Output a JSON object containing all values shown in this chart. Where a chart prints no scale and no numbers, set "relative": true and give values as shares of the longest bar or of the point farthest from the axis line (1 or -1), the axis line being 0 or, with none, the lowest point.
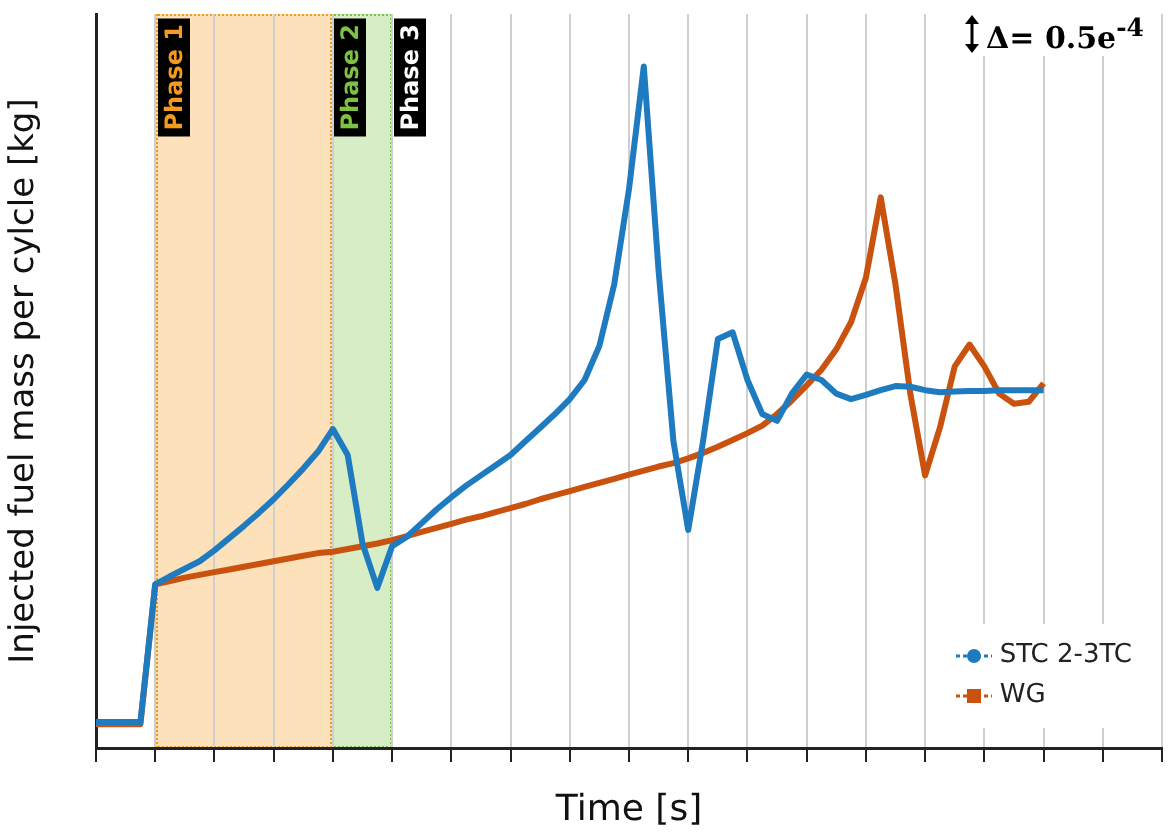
{
  "chart_data": {
    "type": "line",
    "relative": true,
    "xlabel": "Time [s]",
    "ylabel": "Injected fuel mass per cylcle [kg]",
    "categories": [
      null,
      null,
      null,
      null,
      null,
      null,
      null,
      null,
      null,
      null,
      null,
      null,
      null,
      null,
      null,
      null,
      null,
      null,
      null,
      null,
      null,
      null,
      null,
      null,
      null,
      null,
      null,
      null,
      null,
      null,
      null,
      null,
      null,
      null,
      null,
      null,
      null,
      null,
      null,
      null,
      null,
      null,
      null,
      null,
      null,
      null,
      null,
      null,
      null,
      null,
      null,
      null,
      null,
      null,
      null,
      null,
      null,
      null,
      null,
      null,
      null,
      null,
      null,
      null,
      null,
      null,
      null,
      null,
      null,
      null,
      null,
      null,
      null
    ],
    "grid": "x",
    "legend": "bottom right",
    "marker": "none",
    "line_style": "solid",
    "series": [
      {
        "name": "STC 2-3TC",
        "color": "#1f7bbf",
        "values": [
          0.038,
          0.038,
          0.038,
          0.038,
          0.24,
          0.252,
          0.263,
          0.274,
          0.29,
          0.308,
          0.326,
          0.345,
          0.365,
          0.387,
          0.41,
          0.435,
          0.468,
          0.43,
          0.3,
          0.235,
          0.296,
          0.31,
          0.33,
          0.35,
          0.368,
          0.385,
          0.4,
          0.415,
          0.43,
          0.45,
          0.47,
          0.49,
          0.512,
          0.54,
          0.59,
          0.68,
          0.82,
          1,
          0.7,
          0.45,
          0.32,
          0.45,
          0.6,
          0.61,
          0.54,
          0.49,
          0.48,
          0.52,
          0.548,
          0.54,
          0.52,
          0.512,
          0.518,
          0.525,
          0.531,
          0.53,
          0.525,
          0.522,
          0.523,
          0.524,
          0.524,
          0.525,
          0.525,
          0.525,
          0.525,
          null,
          null,
          null,
          null,
          null,
          null,
          null,
          null
        ]
      },
      {
        "name": "WG",
        "color": "#c9520e",
        "values": [
          0.035,
          0.035,
          0.035,
          0.035,
          0.24,
          0.245,
          0.25,
          0.254,
          0.258,
          0.262,
          0.266,
          0.27,
          0.274,
          0.278,
          0.282,
          0.286,
          0.288,
          0.292,
          0.296,
          0.3,
          0.305,
          0.311,
          0.317,
          0.323,
          0.329,
          0.335,
          0.34,
          0.346,
          0.352,
          0.358,
          0.365,
          0.371,
          0.377,
          0.383,
          0.389,
          0.395,
          0.401,
          0.407,
          0.413,
          0.418,
          0.425,
          0.433,
          0.442,
          0.452,
          0.462,
          0.473,
          0.49,
          0.51,
          0.532,
          0.555,
          0.585,
          0.625,
          0.69,
          0.808,
          0.68,
          0.52,
          0.4,
          0.47,
          0.56,
          0.592,
          0.56,
          0.52,
          0.505,
          0.508,
          0.535,
          null,
          null,
          null,
          null,
          null,
          null,
          null,
          null
        ]
      }
    ],
    "annotations": [
      "Phase 1",
      "Phase 2",
      "Phase 3",
      "Δ= 0.5e$^{-4}$"
    ]
  }
}
